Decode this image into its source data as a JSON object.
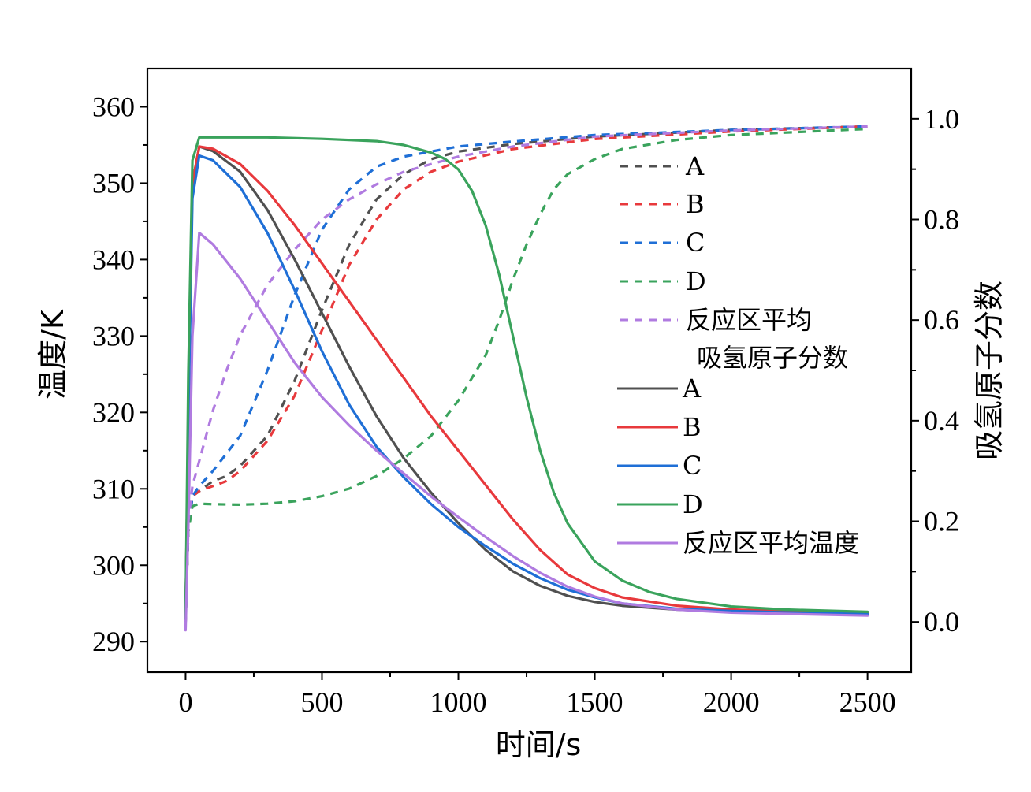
{
  "chart_data": {
    "type": "line",
    "xlabel": "时间/s",
    "ylabel_left": "温度/K",
    "ylabel_right": "吸氢原子分数",
    "xlim": [
      -140,
      2660
    ],
    "ylim_left": [
      286,
      365
    ],
    "ylim_right": [
      -0.1,
      1.1
    ],
    "x_ticks": [
      0,
      500,
      1000,
      1500,
      2000,
      2500
    ],
    "y_left_ticks": [
      290,
      300,
      310,
      320,
      330,
      340,
      350,
      360
    ],
    "y_right_ticks": [
      "0.0",
      "0.2",
      "0.4",
      "0.6",
      "0.8",
      "1.0"
    ],
    "y_right_tick_values": [
      0.0,
      0.2,
      0.4,
      0.6,
      0.8,
      1.0
    ],
    "grid": false,
    "legend_position": "right",
    "legend": {
      "fraction_title_line1": "反应区平均",
      "fraction_title_line2": "吸氢原子分数",
      "fraction_entries": [
        "A",
        "B",
        "C",
        "D"
      ],
      "temperature_entries": [
        "A",
        "B",
        "C",
        "D"
      ],
      "temperature_avg_label": "反应区平均温度"
    },
    "colors": {
      "A": "#505050",
      "B": "#e8393c",
      "C": "#1f6fd6",
      "D": "#3aa35c",
      "avg": "#b07be0"
    },
    "series": [
      {
        "group": "fraction",
        "key": "A",
        "axis": "right",
        "style": "dashed",
        "points": [
          [
            0,
            0.0
          ],
          [
            10,
            0.18
          ],
          [
            25,
            0.25
          ],
          [
            50,
            0.26
          ],
          [
            100,
            0.28
          ],
          [
            150,
            0.29
          ],
          [
            200,
            0.31
          ],
          [
            300,
            0.37
          ],
          [
            400,
            0.48
          ],
          [
            500,
            0.62
          ],
          [
            600,
            0.75
          ],
          [
            700,
            0.84
          ],
          [
            800,
            0.89
          ],
          [
            900,
            0.92
          ],
          [
            1000,
            0.935
          ],
          [
            1200,
            0.95
          ],
          [
            1500,
            0.965
          ],
          [
            2000,
            0.978
          ],
          [
            2500,
            0.985
          ]
        ]
      },
      {
        "group": "fraction",
        "key": "B",
        "axis": "right",
        "style": "dashed",
        "points": [
          [
            0,
            0.0
          ],
          [
            10,
            0.18
          ],
          [
            25,
            0.25
          ],
          [
            50,
            0.26
          ],
          [
            100,
            0.27
          ],
          [
            150,
            0.28
          ],
          [
            200,
            0.3
          ],
          [
            300,
            0.36
          ],
          [
            400,
            0.45
          ],
          [
            500,
            0.58
          ],
          [
            600,
            0.71
          ],
          [
            700,
            0.8
          ],
          [
            800,
            0.86
          ],
          [
            900,
            0.895
          ],
          [
            1000,
            0.915
          ],
          [
            1200,
            0.94
          ],
          [
            1500,
            0.96
          ],
          [
            2000,
            0.975
          ],
          [
            2500,
            0.985
          ]
        ]
      },
      {
        "group": "fraction",
        "key": "C",
        "axis": "right",
        "style": "dashed",
        "points": [
          [
            0,
            0.0
          ],
          [
            10,
            0.18
          ],
          [
            25,
            0.25
          ],
          [
            50,
            0.27
          ],
          [
            100,
            0.3
          ],
          [
            200,
            0.37
          ],
          [
            300,
            0.5
          ],
          [
            400,
            0.65
          ],
          [
            500,
            0.78
          ],
          [
            600,
            0.86
          ],
          [
            700,
            0.905
          ],
          [
            800,
            0.925
          ],
          [
            900,
            0.935
          ],
          [
            1000,
            0.945
          ],
          [
            1200,
            0.955
          ],
          [
            1500,
            0.968
          ],
          [
            2000,
            0.978
          ],
          [
            2500,
            0.985
          ]
        ]
      },
      {
        "group": "fraction",
        "key": "D",
        "axis": "right",
        "style": "dashed",
        "points": [
          [
            0,
            0.0
          ],
          [
            10,
            0.18
          ],
          [
            25,
            0.23
          ],
          [
            50,
            0.235
          ],
          [
            100,
            0.234
          ],
          [
            200,
            0.233
          ],
          [
            300,
            0.235
          ],
          [
            400,
            0.24
          ],
          [
            500,
            0.25
          ],
          [
            600,
            0.265
          ],
          [
            700,
            0.29
          ],
          [
            800,
            0.325
          ],
          [
            900,
            0.37
          ],
          [
            1000,
            0.44
          ],
          [
            1100,
            0.53
          ],
          [
            1150,
            0.6
          ],
          [
            1200,
            0.68
          ],
          [
            1250,
            0.75
          ],
          [
            1300,
            0.81
          ],
          [
            1350,
            0.86
          ],
          [
            1400,
            0.89
          ],
          [
            1500,
            0.92
          ],
          [
            1600,
            0.94
          ],
          [
            1800,
            0.958
          ],
          [
            2000,
            0.968
          ],
          [
            2500,
            0.98
          ]
        ]
      },
      {
        "group": "fraction",
        "key": "avg",
        "axis": "right",
        "style": "dashed",
        "points": [
          [
            0,
            0.0
          ],
          [
            10,
            0.2
          ],
          [
            25,
            0.27
          ],
          [
            50,
            0.32
          ],
          [
            100,
            0.42
          ],
          [
            150,
            0.5
          ],
          [
            200,
            0.57
          ],
          [
            300,
            0.67
          ],
          [
            400,
            0.74
          ],
          [
            500,
            0.8
          ],
          [
            600,
            0.84
          ],
          [
            700,
            0.87
          ],
          [
            800,
            0.895
          ],
          [
            900,
            0.91
          ],
          [
            1000,
            0.925
          ],
          [
            1200,
            0.945
          ],
          [
            1500,
            0.965
          ],
          [
            2000,
            0.977
          ],
          [
            2500,
            0.985
          ]
        ]
      },
      {
        "group": "temperature",
        "key": "A",
        "axis": "left",
        "style": "solid",
        "points": [
          [
            0,
            293
          ],
          [
            10,
            320
          ],
          [
            25,
            350
          ],
          [
            50,
            354.8
          ],
          [
            100,
            354.2
          ],
          [
            200,
            351.5
          ],
          [
            300,
            346.5
          ],
          [
            400,
            340
          ],
          [
            500,
            333
          ],
          [
            600,
            326
          ],
          [
            700,
            319.5
          ],
          [
            800,
            314
          ],
          [
            900,
            309.5
          ],
          [
            1000,
            305.5
          ],
          [
            1100,
            302
          ],
          [
            1200,
            299.2
          ],
          [
            1300,
            297.3
          ],
          [
            1400,
            296
          ],
          [
            1500,
            295.2
          ],
          [
            1600,
            294.7
          ],
          [
            1800,
            294.2
          ],
          [
            2000,
            293.9
          ],
          [
            2500,
            293.6
          ]
        ]
      },
      {
        "group": "temperature",
        "key": "B",
        "axis": "left",
        "style": "solid",
        "points": [
          [
            0,
            293
          ],
          [
            10,
            320
          ],
          [
            25,
            350
          ],
          [
            50,
            354.8
          ],
          [
            100,
            354.5
          ],
          [
            200,
            352.5
          ],
          [
            300,
            349
          ],
          [
            400,
            344.5
          ],
          [
            500,
            339.5
          ],
          [
            600,
            334.5
          ],
          [
            700,
            329.5
          ],
          [
            800,
            324.5
          ],
          [
            900,
            319.5
          ],
          [
            1000,
            315
          ],
          [
            1100,
            310.5
          ],
          [
            1200,
            306
          ],
          [
            1300,
            302
          ],
          [
            1400,
            298.8
          ],
          [
            1500,
            297
          ],
          [
            1600,
            295.8
          ],
          [
            1800,
            294.7
          ],
          [
            2000,
            294.2
          ],
          [
            2500,
            293.7
          ]
        ]
      },
      {
        "group": "temperature",
        "key": "C",
        "axis": "left",
        "style": "solid",
        "points": [
          [
            0,
            293
          ],
          [
            10,
            318
          ],
          [
            25,
            348
          ],
          [
            50,
            353.6
          ],
          [
            100,
            353
          ],
          [
            200,
            349.5
          ],
          [
            300,
            343.5
          ],
          [
            400,
            336
          ],
          [
            500,
            328
          ],
          [
            600,
            321
          ],
          [
            700,
            315.5
          ],
          [
            800,
            311.5
          ],
          [
            900,
            308
          ],
          [
            1000,
            305
          ],
          [
            1100,
            302.5
          ],
          [
            1200,
            300.2
          ],
          [
            1300,
            298.3
          ],
          [
            1400,
            296.8
          ],
          [
            1500,
            295.8
          ],
          [
            1600,
            295
          ],
          [
            1800,
            294.3
          ],
          [
            2000,
            294
          ],
          [
            2500,
            293.6
          ]
        ]
      },
      {
        "group": "temperature",
        "key": "D",
        "axis": "left",
        "style": "solid",
        "points": [
          [
            0,
            293
          ],
          [
            10,
            325
          ],
          [
            25,
            353
          ],
          [
            50,
            356
          ],
          [
            100,
            356
          ],
          [
            300,
            356
          ],
          [
            500,
            355.8
          ],
          [
            700,
            355.5
          ],
          [
            800,
            355
          ],
          [
            900,
            354
          ],
          [
            950,
            353.2
          ],
          [
            1000,
            351.8
          ],
          [
            1050,
            349
          ],
          [
            1100,
            344.5
          ],
          [
            1150,
            338
          ],
          [
            1200,
            330
          ],
          [
            1250,
            322
          ],
          [
            1300,
            315
          ],
          [
            1350,
            309.5
          ],
          [
            1400,
            305.5
          ],
          [
            1500,
            300.5
          ],
          [
            1600,
            298
          ],
          [
            1700,
            296.5
          ],
          [
            1800,
            295.6
          ],
          [
            2000,
            294.6
          ],
          [
            2200,
            294.2
          ],
          [
            2500,
            293.9
          ]
        ]
      },
      {
        "group": "temperature",
        "key": "avg",
        "axis": "left",
        "style": "solid",
        "points": [
          [
            0,
            291.5
          ],
          [
            10,
            305
          ],
          [
            25,
            330
          ],
          [
            50,
            343.5
          ],
          [
            100,
            342
          ],
          [
            200,
            337.5
          ],
          [
            300,
            332
          ],
          [
            400,
            326.5
          ],
          [
            500,
            322
          ],
          [
            600,
            318.3
          ],
          [
            700,
            315
          ],
          [
            800,
            312
          ],
          [
            900,
            309
          ],
          [
            1000,
            306.3
          ],
          [
            1100,
            303.7
          ],
          [
            1200,
            301.2
          ],
          [
            1300,
            299
          ],
          [
            1400,
            297.2
          ],
          [
            1500,
            295.9
          ],
          [
            1600,
            295
          ],
          [
            1800,
            294.2
          ],
          [
            2000,
            293.8
          ],
          [
            2500,
            293.4
          ]
        ]
      }
    ]
  }
}
